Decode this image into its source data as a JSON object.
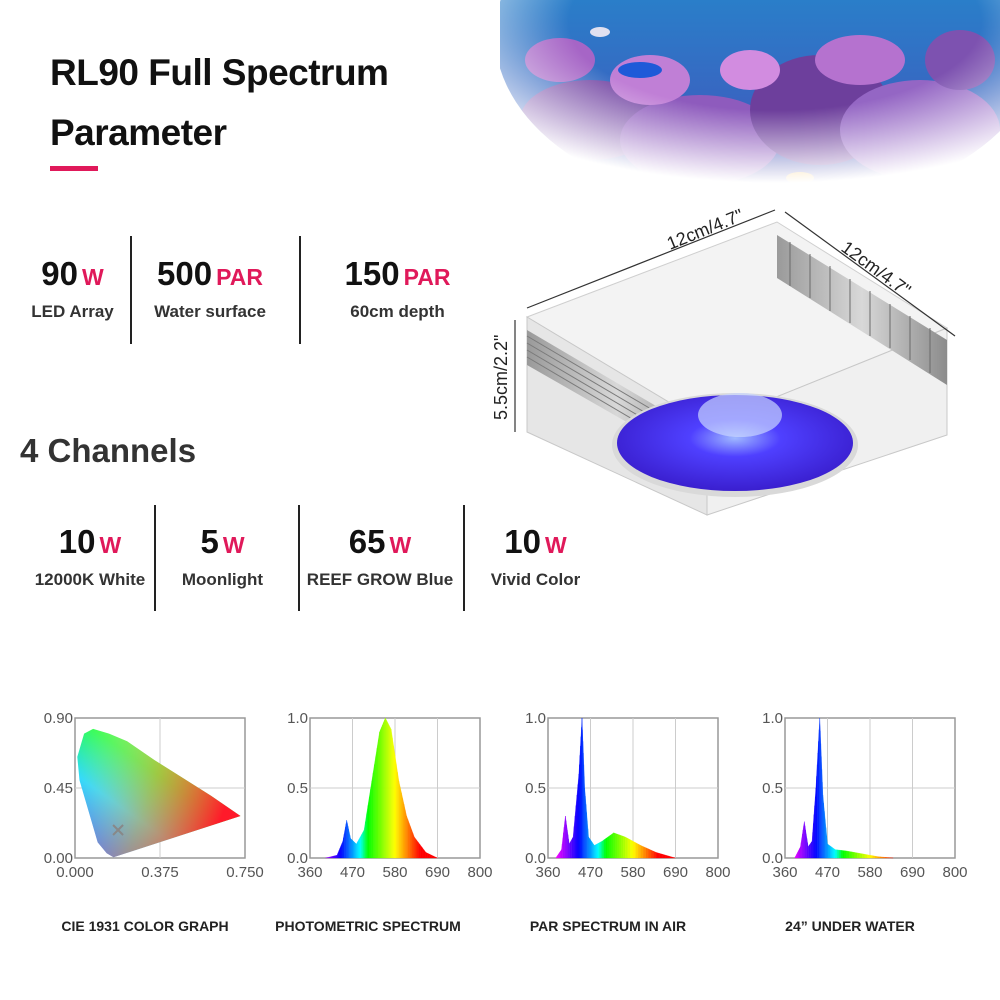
{
  "header": {
    "title_line1": "RL90 Full Spectrum",
    "title_line2": "Parameter"
  },
  "specs": [
    {
      "value": "90",
      "unit": "W",
      "label": "LED Array"
    },
    {
      "value": "500",
      "unit": "PAR",
      "label": "Water surface"
    },
    {
      "value": "150",
      "unit": "PAR",
      "label": "60cm depth"
    }
  ],
  "channels_title": "4 Channels",
  "channels": [
    {
      "value": "10",
      "unit": "W",
      "label": "12000K White"
    },
    {
      "value": "5",
      "unit": "W",
      "label": "Moonlight"
    },
    {
      "value": "65",
      "unit": "W",
      "label": "REEF GROW Blue"
    },
    {
      "value": "10",
      "unit": "W",
      "label": "Vivid Color"
    }
  ],
  "dimensions": {
    "width": "12cm/4.7\"",
    "depth": "12cm/4.7\"",
    "height": "5.5cm/2.2\""
  },
  "colors": {
    "accent": "#e0195a",
    "lens": "#4a2cff"
  },
  "chart_data": [
    {
      "type": "scatter",
      "title": "CIE 1931 COLOR GRAPH",
      "x_ticks": [
        "0.000",
        "0.375",
        "0.750"
      ],
      "y_ticks": [
        "0.90",
        "0.45",
        "0.00"
      ],
      "xlim": [
        0,
        0.75
      ],
      "ylim": [
        0,
        0.9
      ],
      "series": [
        {
          "x": [
            0.19
          ],
          "y": [
            0.18
          ]
        }
      ]
    },
    {
      "type": "area",
      "title": "PHOTOMETRIC SPECTRUM",
      "x_ticks": [
        "360",
        "470",
        "580",
        "690",
        "800"
      ],
      "y_ticks": [
        "1.0",
        "0.5",
        "0.0"
      ],
      "xlim": [
        360,
        800
      ],
      "ylim": [
        0,
        1
      ],
      "x": [
        400,
        430,
        445,
        455,
        465,
        480,
        500,
        520,
        540,
        555,
        570,
        590,
        610,
        630,
        660,
        690
      ],
      "values": [
        0,
        0.02,
        0.12,
        0.27,
        0.14,
        0.1,
        0.2,
        0.55,
        0.9,
        1.0,
        0.92,
        0.55,
        0.3,
        0.15,
        0.04,
        0
      ]
    },
    {
      "type": "area",
      "title": "PAR SPECTRUM IN AIR",
      "x_ticks": [
        "360",
        "470",
        "580",
        "690",
        "800"
      ],
      "y_ticks": [
        "1.0",
        "0.5",
        "0.0"
      ],
      "xlim": [
        360,
        800
      ],
      "ylim": [
        0,
        1
      ],
      "x": [
        380,
        395,
        405,
        415,
        425,
        440,
        448,
        455,
        465,
        480,
        500,
        530,
        560,
        600,
        640,
        690
      ],
      "values": [
        0,
        0.06,
        0.3,
        0.1,
        0.15,
        0.6,
        1.0,
        0.5,
        0.15,
        0.09,
        0.12,
        0.18,
        0.15,
        0.09,
        0.04,
        0
      ]
    },
    {
      "type": "area",
      "title": "24”  UNDER WATER",
      "x_ticks": [
        "360",
        "470",
        "580",
        "690",
        "800"
      ],
      "y_ticks": [
        "1.0",
        "0.5",
        "0.0"
      ],
      "xlim": [
        360,
        800
      ],
      "ylim": [
        0,
        1
      ],
      "x": [
        385,
        400,
        410,
        420,
        430,
        440,
        450,
        458,
        470,
        490,
        520,
        560,
        600,
        640
      ],
      "values": [
        0,
        0.08,
        0.26,
        0.08,
        0.12,
        0.5,
        1.0,
        0.45,
        0.1,
        0.06,
        0.05,
        0.03,
        0.01,
        0
      ]
    }
  ]
}
